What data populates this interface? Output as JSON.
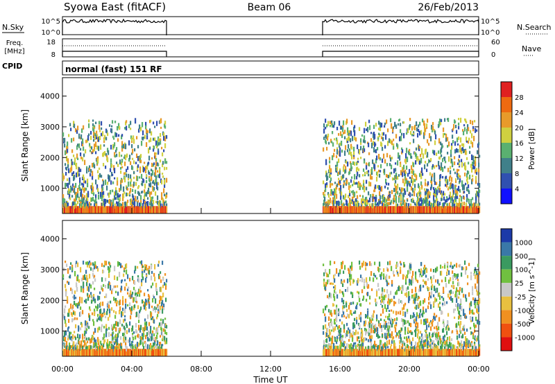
{
  "header": {
    "station": "Syowa East (fitACF)",
    "beam": "Beam 06",
    "date": "26/Feb/2013"
  },
  "summary": {
    "nsky_label": "N.Sky",
    "nsky_top_tick": "10^5",
    "nsky_bottom_tick": "10^0",
    "nsearch_label": "N.Search",
    "nsearch_top_tick": "10^5",
    "nsearch_bottom_tick": "10^0",
    "freq_label_line1": "Freq.",
    "freq_label_line2": "[MHz]",
    "freq_top_tick": "18",
    "freq_bottom_tick": "8",
    "nave_label": "Nave",
    "nave_top_tick": "60",
    "nave_bottom_tick": "0",
    "cpid_label": "CPID",
    "cpid_text": "normal (fast) 151 RF"
  },
  "panels": {
    "ylabel": "Slant Range [km]",
    "yticks": [
      "1000",
      "2000",
      "3000",
      "4000"
    ],
    "xticks": [
      "00:00",
      "04:00",
      "08:00",
      "12:00",
      "16:00",
      "20:00",
      "00:00"
    ],
    "xlabel": "Time UT"
  },
  "power_scale": {
    "label": "Power [dB]",
    "ticks": [
      "4",
      "8",
      "12",
      "16",
      "20",
      "24",
      "28"
    ],
    "colors": [
      "#1010ff",
      "#3050b0",
      "#40808a",
      "#5ab070",
      "#cfd040",
      "#e89a2a",
      "#ee6a10",
      "#e02020"
    ]
  },
  "velocity_scale": {
    "label": "Velocity [m s^-1]",
    "ticks": [
      "1000",
      "500",
      "100",
      "25",
      "-25",
      "-100",
      "-500",
      "-1000"
    ],
    "colors": [
      "#1c3aa8",
      "#3a78a8",
      "#3a9a60",
      "#70c040",
      "#c8c8c8",
      "#e8c040",
      "#f09020",
      "#f05010",
      "#e01010"
    ]
  },
  "chart_data": [
    {
      "type": "line",
      "name": "summary-nsky-nsearch",
      "x": [
        "00:00",
        "06:00",
        "15:00",
        "24:00"
      ],
      "scale": "log",
      "ylim": [
        1,
        100000
      ],
      "coverage_hours": [
        [
          0,
          6
        ],
        [
          15,
          24
        ]
      ]
    },
    {
      "type": "line",
      "name": "summary-freq-nave",
      "freq_ylim": [
        8,
        18
      ],
      "nave_ylim": [
        0,
        60
      ],
      "coverage_hours": [
        [
          0,
          6
        ],
        [
          15,
          24
        ]
      ]
    },
    {
      "type": "heatmap",
      "name": "power",
      "xlim_hours": [
        0,
        24
      ],
      "ylim_km": [
        180,
        4600
      ],
      "zlim_db": [
        0,
        32
      ],
      "coverage_hours": [
        [
          0,
          6
        ],
        [
          15,
          24
        ]
      ]
    },
    {
      "type": "heatmap",
      "name": "velocity",
      "xlim_hours": [
        0,
        24
      ],
      "ylim_km": [
        180,
        4600
      ],
      "zlim_ms": [
        -1500,
        1500
      ],
      "coverage_hours": [
        [
          0,
          6
        ],
        [
          15,
          24
        ]
      ]
    }
  ]
}
